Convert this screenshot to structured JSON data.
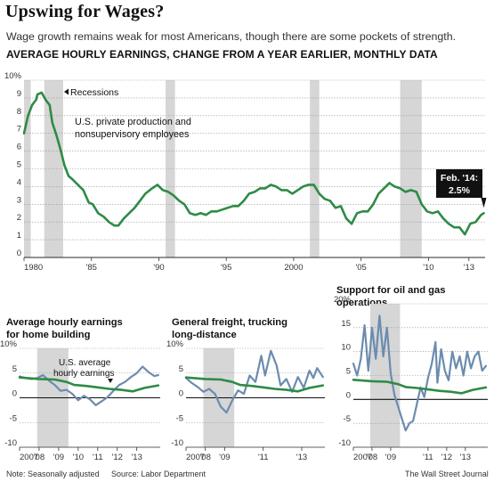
{
  "title": "Upswing for Wages?",
  "subtitle": "Wage growth remains weak for most Americans, though there are some pockets of strength.",
  "colors": {
    "main_line": "#2e8b46",
    "secondary_line": "#6b8cae",
    "recession": "#d6d6d6"
  },
  "chart_data": [
    {
      "type": "line",
      "title": "AVERAGE HOURLY EARNINGS, CHANGE FROM A YEAR EARLIER, MONTHLY DATA",
      "ylim": [
        0,
        10
      ],
      "ytick_labels": [
        "10%",
        "9",
        "8",
        "7",
        "6",
        "5",
        "4",
        "3",
        "2",
        "1",
        "0"
      ],
      "ytick_values": [
        10,
        9,
        8,
        7,
        6,
        5,
        4,
        3,
        2,
        1,
        0
      ],
      "xlim": [
        1980,
        2014.2
      ],
      "xtick_labels": [
        "1980",
        "'85",
        "'90",
        "'95",
        "2000",
        "'05",
        "'10",
        "'13"
      ],
      "xtick_values": [
        1980,
        1985,
        1990,
        1995,
        2000,
        2005,
        2010,
        2013
      ],
      "recessions": [
        [
          1980.0,
          1980.5
        ],
        [
          1981.5,
          1982.9
        ],
        [
          1990.5,
          1991.2
        ],
        [
          2001.2,
          2001.9
        ],
        [
          2007.9,
          2009.5
        ]
      ],
      "recession_label": "Recessions",
      "series_label": "U.S. private production and nonsupervisory employees",
      "callout": {
        "date": "Feb. '14:",
        "value": "2.5%"
      },
      "series": [
        {
          "name": "U.S. private production and nonsupervisory employees",
          "points": [
            [
              1980.0,
              7.0
            ],
            [
              1980.3,
              8.0
            ],
            [
              1980.6,
              8.6
            ],
            [
              1980.9,
              8.9
            ],
            [
              1981.0,
              9.2
            ],
            [
              1981.3,
              9.3
            ],
            [
              1981.6,
              8.9
            ],
            [
              1981.9,
              8.6
            ],
            [
              1982.1,
              7.6
            ],
            [
              1982.4,
              6.9
            ],
            [
              1982.7,
              6.1
            ],
            [
              1983.0,
              5.2
            ],
            [
              1983.3,
              4.6
            ],
            [
              1983.6,
              4.4
            ],
            [
              1984.0,
              4.1
            ],
            [
              1984.4,
              3.8
            ],
            [
              1984.8,
              3.1
            ],
            [
              1985.1,
              3.0
            ],
            [
              1985.5,
              2.5
            ],
            [
              1985.9,
              2.3
            ],
            [
              1986.3,
              2.0
            ],
            [
              1986.7,
              1.8
            ],
            [
              1987.0,
              1.8
            ],
            [
              1987.4,
              2.2
            ],
            [
              1987.8,
              2.5
            ],
            [
              1988.2,
              2.8
            ],
            [
              1988.6,
              3.2
            ],
            [
              1989.0,
              3.6
            ],
            [
              1989.5,
              3.9
            ],
            [
              1989.9,
              4.1
            ],
            [
              1990.3,
              3.8
            ],
            [
              1990.7,
              3.7
            ],
            [
              1991.1,
              3.5
            ],
            [
              1991.5,
              3.2
            ],
            [
              1991.9,
              3.0
            ],
            [
              1992.3,
              2.5
            ],
            [
              1992.7,
              2.4
            ],
            [
              1993.1,
              2.5
            ],
            [
              1993.5,
              2.4
            ],
            [
              1993.9,
              2.6
            ],
            [
              1994.3,
              2.6
            ],
            [
              1994.7,
              2.7
            ],
            [
              1995.1,
              2.8
            ],
            [
              1995.5,
              2.9
            ],
            [
              1995.9,
              2.9
            ],
            [
              1996.3,
              3.2
            ],
            [
              1996.7,
              3.6
            ],
            [
              1997.1,
              3.7
            ],
            [
              1997.5,
              3.9
            ],
            [
              1997.9,
              3.9
            ],
            [
              1998.3,
              4.1
            ],
            [
              1998.7,
              4.0
            ],
            [
              1999.1,
              3.8
            ],
            [
              1999.5,
              3.8
            ],
            [
              1999.9,
              3.6
            ],
            [
              2000.3,
              3.8
            ],
            [
              2000.7,
              4.0
            ],
            [
              2001.1,
              4.1
            ],
            [
              2001.5,
              4.1
            ],
            [
              2001.9,
              3.6
            ],
            [
              2002.3,
              3.3
            ],
            [
              2002.7,
              3.2
            ],
            [
              2003.1,
              2.8
            ],
            [
              2003.5,
              2.9
            ],
            [
              2003.9,
              2.2
            ],
            [
              2004.3,
              1.9
            ],
            [
              2004.7,
              2.5
            ],
            [
              2005.1,
              2.6
            ],
            [
              2005.5,
              2.6
            ],
            [
              2005.9,
              3.0
            ],
            [
              2006.3,
              3.6
            ],
            [
              2006.7,
              3.9
            ],
            [
              2007.1,
              4.2
            ],
            [
              2007.5,
              4.0
            ],
            [
              2007.9,
              3.9
            ],
            [
              2008.3,
              3.7
            ],
            [
              2008.7,
              3.8
            ],
            [
              2009.1,
              3.7
            ],
            [
              2009.5,
              3.0
            ],
            [
              2009.9,
              2.6
            ],
            [
              2010.3,
              2.5
            ],
            [
              2010.7,
              2.6
            ],
            [
              2011.1,
              2.2
            ],
            [
              2011.5,
              1.9
            ],
            [
              2011.9,
              1.7
            ],
            [
              2012.3,
              1.7
            ],
            [
              2012.7,
              1.3
            ],
            [
              2013.1,
              1.9
            ],
            [
              2013.5,
              2.0
            ],
            [
              2013.9,
              2.4
            ],
            [
              2014.1,
              2.5
            ]
          ]
        }
      ]
    },
    {
      "type": "line",
      "title": "Average hourly earnings for home building",
      "ylim": [
        -10,
        10
      ],
      "ytick_labels": [
        "10%",
        "5",
        "0",
        "-5",
        "-10"
      ],
      "ytick_values": [
        10,
        5,
        0,
        -5,
        -10
      ],
      "xlim": [
        2007,
        2014.2
      ],
      "xtick_labels": [
        "2007",
        "'08",
        "'09",
        "'10",
        "'11",
        "'12",
        "'13"
      ],
      "xtick_values": [
        2007,
        2008,
        2009,
        2010,
        2011,
        2012,
        2013
      ],
      "recessions": [
        [
          2007.9,
          2009.5
        ]
      ],
      "annotation": "U.S. average hourly earnings",
      "series": [
        {
          "name": "Average hourly earnings for home building",
          "points": [
            [
              2007.0,
              4.3
            ],
            [
              2007.3,
              4.0
            ],
            [
              2007.6,
              3.8
            ],
            [
              2007.9,
              4.0
            ],
            [
              2008.2,
              4.6
            ],
            [
              2008.5,
              3.5
            ],
            [
              2008.8,
              2.6
            ],
            [
              2009.1,
              1.4
            ],
            [
              2009.4,
              1.6
            ],
            [
              2009.7,
              0.8
            ],
            [
              2010.0,
              -0.5
            ],
            [
              2010.3,
              0.4
            ],
            [
              2010.6,
              -0.3
            ],
            [
              2010.9,
              -1.5
            ],
            [
              2011.2,
              -0.7
            ],
            [
              2011.5,
              0.1
            ],
            [
              2011.8,
              1.4
            ],
            [
              2012.1,
              2.6
            ],
            [
              2012.4,
              3.2
            ],
            [
              2012.7,
              4.2
            ],
            [
              2013.0,
              5.0
            ],
            [
              2013.3,
              6.3
            ],
            [
              2013.6,
              5.2
            ],
            [
              2013.9,
              4.4
            ],
            [
              2014.1,
              4.6
            ]
          ]
        },
        {
          "name": "U.S. average hourly earnings",
          "points": [
            [
              2007.0,
              4.1
            ],
            [
              2008.0,
              3.8
            ],
            [
              2008.8,
              3.7
            ],
            [
              2009.4,
              3.2
            ],
            [
              2009.8,
              2.6
            ],
            [
              2010.4,
              2.4
            ],
            [
              2011.0,
              2.1
            ],
            [
              2011.6,
              1.8
            ],
            [
              2012.2,
              1.6
            ],
            [
              2012.8,
              1.3
            ],
            [
              2013.4,
              2.0
            ],
            [
              2014.1,
              2.5
            ]
          ]
        }
      ]
    },
    {
      "type": "line",
      "title": "General freight, trucking long-distance",
      "ylim": [
        -10,
        10
      ],
      "ytick_labels": [
        "10%",
        "5",
        "0",
        "-5",
        "-10"
      ],
      "ytick_values": [
        10,
        5,
        0,
        -5,
        -10
      ],
      "xlim": [
        2007,
        2014.2
      ],
      "xtick_labels": [
        "2007",
        "'08",
        "'09",
        "'11",
        "'13"
      ],
      "xtick_values": [
        2007,
        2008,
        2009,
        2011,
        2013
      ],
      "recessions": [
        [
          2007.9,
          2009.5
        ]
      ],
      "series": [
        {
          "name": "General freight, trucking long-distance",
          "points": [
            [
              2007.0,
              4.0
            ],
            [
              2007.3,
              3.0
            ],
            [
              2007.6,
              2.2
            ],
            [
              2007.9,
              1.2
            ],
            [
              2008.2,
              1.8
            ],
            [
              2008.5,
              0.8
            ],
            [
              2008.8,
              -1.8
            ],
            [
              2009.1,
              -3.0
            ],
            [
              2009.4,
              -0.5
            ],
            [
              2009.7,
              1.5
            ],
            [
              2010.0,
              0.8
            ],
            [
              2010.3,
              4.5
            ],
            [
              2010.6,
              3.2
            ],
            [
              2010.9,
              8.5
            ],
            [
              2011.1,
              4.5
            ],
            [
              2011.4,
              9.5
            ],
            [
              2011.7,
              6.5
            ],
            [
              2011.9,
              2.5
            ],
            [
              2012.2,
              3.8
            ],
            [
              2012.5,
              1.2
            ],
            [
              2012.8,
              4.2
            ],
            [
              2013.1,
              2.0
            ],
            [
              2013.4,
              5.5
            ],
            [
              2013.6,
              4.0
            ],
            [
              2013.8,
              6.0
            ],
            [
              2014.1,
              4.2
            ]
          ]
        },
        {
          "name": "U.S. average hourly earnings",
          "points": [
            [
              2007.0,
              4.1
            ],
            [
              2008.0,
              3.8
            ],
            [
              2008.8,
              3.7
            ],
            [
              2009.4,
              3.2
            ],
            [
              2009.8,
              2.6
            ],
            [
              2010.4,
              2.4
            ],
            [
              2011.0,
              2.1
            ],
            [
              2011.6,
              1.8
            ],
            [
              2012.2,
              1.6
            ],
            [
              2012.8,
              1.3
            ],
            [
              2013.4,
              2.0
            ],
            [
              2014.1,
              2.5
            ]
          ]
        }
      ]
    },
    {
      "type": "line",
      "title": "Support for oil and gas operations",
      "ylim": [
        -10,
        20
      ],
      "ytick_labels": [
        "20%",
        "15",
        "10",
        "5",
        "0",
        "-5",
        "-10"
      ],
      "ytick_values": [
        20,
        15,
        10,
        5,
        0,
        -5,
        -10
      ],
      "xlim": [
        2007,
        2014.2
      ],
      "xtick_labels": [
        "2007",
        "'08",
        "'09",
        "'11",
        "'12",
        "'13"
      ],
      "xtick_values": [
        2007,
        2008,
        2009,
        2011,
        2012,
        2013
      ],
      "recessions": [
        [
          2007.9,
          2009.5
        ]
      ],
      "series": [
        {
          "name": "Support for oil and gas operations",
          "points": [
            [
              2007.0,
              7.5
            ],
            [
              2007.2,
              5.0
            ],
            [
              2007.4,
              8.5
            ],
            [
              2007.6,
              15.5
            ],
            [
              2007.8,
              6.0
            ],
            [
              2008.0,
              15.0
            ],
            [
              2008.2,
              8.5
            ],
            [
              2008.4,
              17.5
            ],
            [
              2008.6,
              9.0
            ],
            [
              2008.8,
              15.0
            ],
            [
              2009.0,
              5.5
            ],
            [
              2009.2,
              1.0
            ],
            [
              2009.4,
              -1.5
            ],
            [
              2009.6,
              -4.0
            ],
            [
              2009.8,
              -6.5
            ],
            [
              2010.0,
              -5.0
            ],
            [
              2010.2,
              -4.5
            ],
            [
              2010.4,
              -1.0
            ],
            [
              2010.6,
              2.5
            ],
            [
              2010.8,
              0.5
            ],
            [
              2011.0,
              4.5
            ],
            [
              2011.2,
              7.5
            ],
            [
              2011.4,
              12.0
            ],
            [
              2011.5,
              3.5
            ],
            [
              2011.7,
              10.5
            ],
            [
              2011.9,
              6.0
            ],
            [
              2012.1,
              4.0
            ],
            [
              2012.3,
              10.0
            ],
            [
              2012.5,
              6.5
            ],
            [
              2012.7,
              9.0
            ],
            [
              2012.9,
              5.0
            ],
            [
              2013.1,
              10.0
            ],
            [
              2013.3,
              6.5
            ],
            [
              2013.5,
              9.0
            ],
            [
              2013.7,
              10.0
            ],
            [
              2013.9,
              6.0
            ],
            [
              2014.1,
              7.0
            ]
          ]
        },
        {
          "name": "U.S. average hourly earnings",
          "points": [
            [
              2007.0,
              4.1
            ],
            [
              2008.0,
              3.8
            ],
            [
              2008.8,
              3.7
            ],
            [
              2009.4,
              3.2
            ],
            [
              2009.8,
              2.6
            ],
            [
              2010.4,
              2.4
            ],
            [
              2011.0,
              2.1
            ],
            [
              2011.6,
              1.8
            ],
            [
              2012.2,
              1.6
            ],
            [
              2012.8,
              1.3
            ],
            [
              2013.4,
              2.0
            ],
            [
              2014.1,
              2.5
            ]
          ]
        }
      ]
    }
  ],
  "footer": {
    "note": "Note: Seasonally adjusted",
    "source": "Source: Labor Department",
    "credit": "The Wall Street Journal"
  }
}
